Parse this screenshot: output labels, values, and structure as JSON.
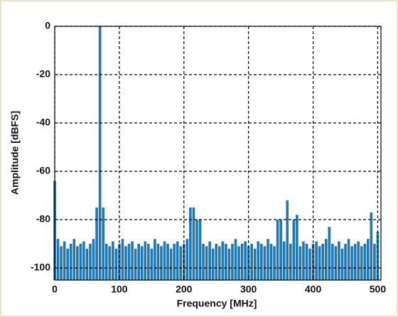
{
  "chart_data": {
    "type": "spectrum",
    "color": "#1f77b4",
    "grid": true,
    "xlabel": "Frequency [MHz]",
    "ylabel": "Amplitude [dBFS]",
    "xlim": [
      0,
      505
    ],
    "ylim": [
      -105,
      0
    ],
    "xticks": [
      0,
      100,
      200,
      300,
      400,
      500
    ],
    "yticks": [
      0,
      -20,
      -40,
      -60,
      -80,
      -100
    ],
    "x": [
      0,
      5,
      10,
      15,
      20,
      25,
      30,
      35,
      40,
      45,
      50,
      55,
      60,
      65,
      70,
      75,
      80,
      85,
      90,
      95,
      100,
      105,
      110,
      115,
      120,
      125,
      130,
      135,
      140,
      145,
      150,
      155,
      160,
      165,
      170,
      175,
      180,
      185,
      190,
      195,
      200,
      205,
      210,
      215,
      220,
      225,
      230,
      235,
      240,
      245,
      250,
      255,
      260,
      265,
      270,
      275,
      280,
      285,
      290,
      295,
      300,
      305,
      310,
      315,
      320,
      325,
      330,
      335,
      340,
      345,
      350,
      355,
      360,
      365,
      370,
      375,
      380,
      385,
      390,
      395,
      400,
      405,
      410,
      415,
      420,
      425,
      430,
      435,
      440,
      445,
      450,
      455,
      460,
      465,
      470,
      475,
      480,
      485,
      490,
      495,
      500
    ],
    "values": [
      -64,
      -88,
      -91,
      -89,
      -92,
      -90,
      -88,
      -91,
      -90,
      -89,
      -92,
      -90,
      -88,
      -75,
      0,
      -75,
      -90,
      -91,
      -89,
      -92,
      -90,
      -88,
      -91,
      -90,
      -89,
      -92,
      -90,
      -91,
      -89,
      -90,
      -92,
      -88,
      -90,
      -91,
      -89,
      -90,
      -92,
      -90,
      -89,
      -91,
      -90,
      -88,
      -75,
      -75,
      -80,
      -80,
      -90,
      -91,
      -89,
      -92,
      -90,
      -91,
      -89,
      -90,
      -92,
      -90,
      -88,
      -91,
      -90,
      -89,
      -91,
      -90,
      -92,
      -89,
      -90,
      -91,
      -88,
      -90,
      -91,
      -80,
      -80,
      -89,
      -72,
      -90,
      -80,
      -78,
      -91,
      -89,
      -90,
      -92,
      -90,
      -89,
      -91,
      -90,
      -88,
      -83,
      -90,
      -91,
      -89,
      -92,
      -90,
      -88,
      -91,
      -90,
      -89,
      -91,
      -90,
      -88,
      -77,
      -90,
      -85
    ]
  }
}
